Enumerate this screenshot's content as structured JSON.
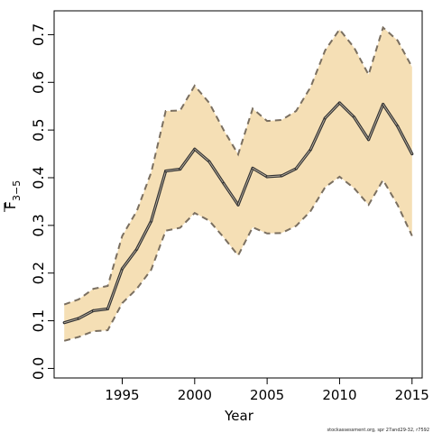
{
  "chart_data": {
    "type": "line",
    "title": "",
    "xlabel": "Year",
    "ylabel": {
      "main": "F",
      "subscript": "3−5"
    },
    "xlim": [
      1990.3,
      2015.7
    ],
    "ylim": [
      -0.02,
      0.75
    ],
    "x_ticks": [
      1995,
      2000,
      2005,
      2010,
      2015
    ],
    "y_ticks": [
      0.0,
      0.1,
      0.2,
      0.3,
      0.4,
      0.5,
      0.6,
      0.7
    ],
    "x_tick_labels": [
      "1995",
      "2000",
      "2005",
      "2010",
      "2015"
    ],
    "y_tick_labels": [
      "0.0",
      "0.1",
      "0.2",
      "0.3",
      "0.4",
      "0.5",
      "0.6",
      "0.7"
    ],
    "grid": false,
    "legend": "none",
    "x": [
      1991,
      1992,
      1993,
      1994,
      1995,
      1996,
      1997,
      1998,
      1999,
      2000,
      2001,
      2002,
      2003,
      2004,
      2005,
      2006,
      2007,
      2008,
      2009,
      2010,
      2011,
      2012,
      2013,
      2014,
      2015
    ],
    "series": [
      {
        "role": "estimate",
        "values": [
          0.096,
          0.105,
          0.121,
          0.125,
          0.209,
          0.25,
          0.309,
          0.414,
          0.418,
          0.46,
          0.434,
          0.388,
          0.343,
          0.42,
          0.402,
          0.404,
          0.419,
          0.459,
          0.525,
          0.557,
          0.527,
          0.48,
          0.554,
          0.508,
          0.45
        ]
      },
      {
        "role": "upper_bound",
        "values": [
          0.134,
          0.145,
          0.167,
          0.173,
          0.278,
          0.33,
          0.411,
          0.54,
          0.541,
          0.593,
          0.557,
          0.5,
          0.449,
          0.545,
          0.519,
          0.521,
          0.54,
          0.59,
          0.667,
          0.711,
          0.673,
          0.616,
          0.715,
          0.688,
          0.632
        ]
      },
      {
        "role": "lower_bound",
        "values": [
          0.058,
          0.066,
          0.078,
          0.08,
          0.137,
          0.167,
          0.207,
          0.289,
          0.295,
          0.326,
          0.31,
          0.275,
          0.237,
          0.296,
          0.283,
          0.284,
          0.299,
          0.33,
          0.38,
          0.402,
          0.378,
          0.343,
          0.395,
          0.343,
          0.278
        ]
      }
    ],
    "colors": {
      "band": "#f5dfb5",
      "estimate_line": "#333333",
      "bound_line": "#7a6f60",
      "axis": "#000000"
    }
  },
  "footnote": "stockassessment.org, spr 27and29-32, r7592"
}
